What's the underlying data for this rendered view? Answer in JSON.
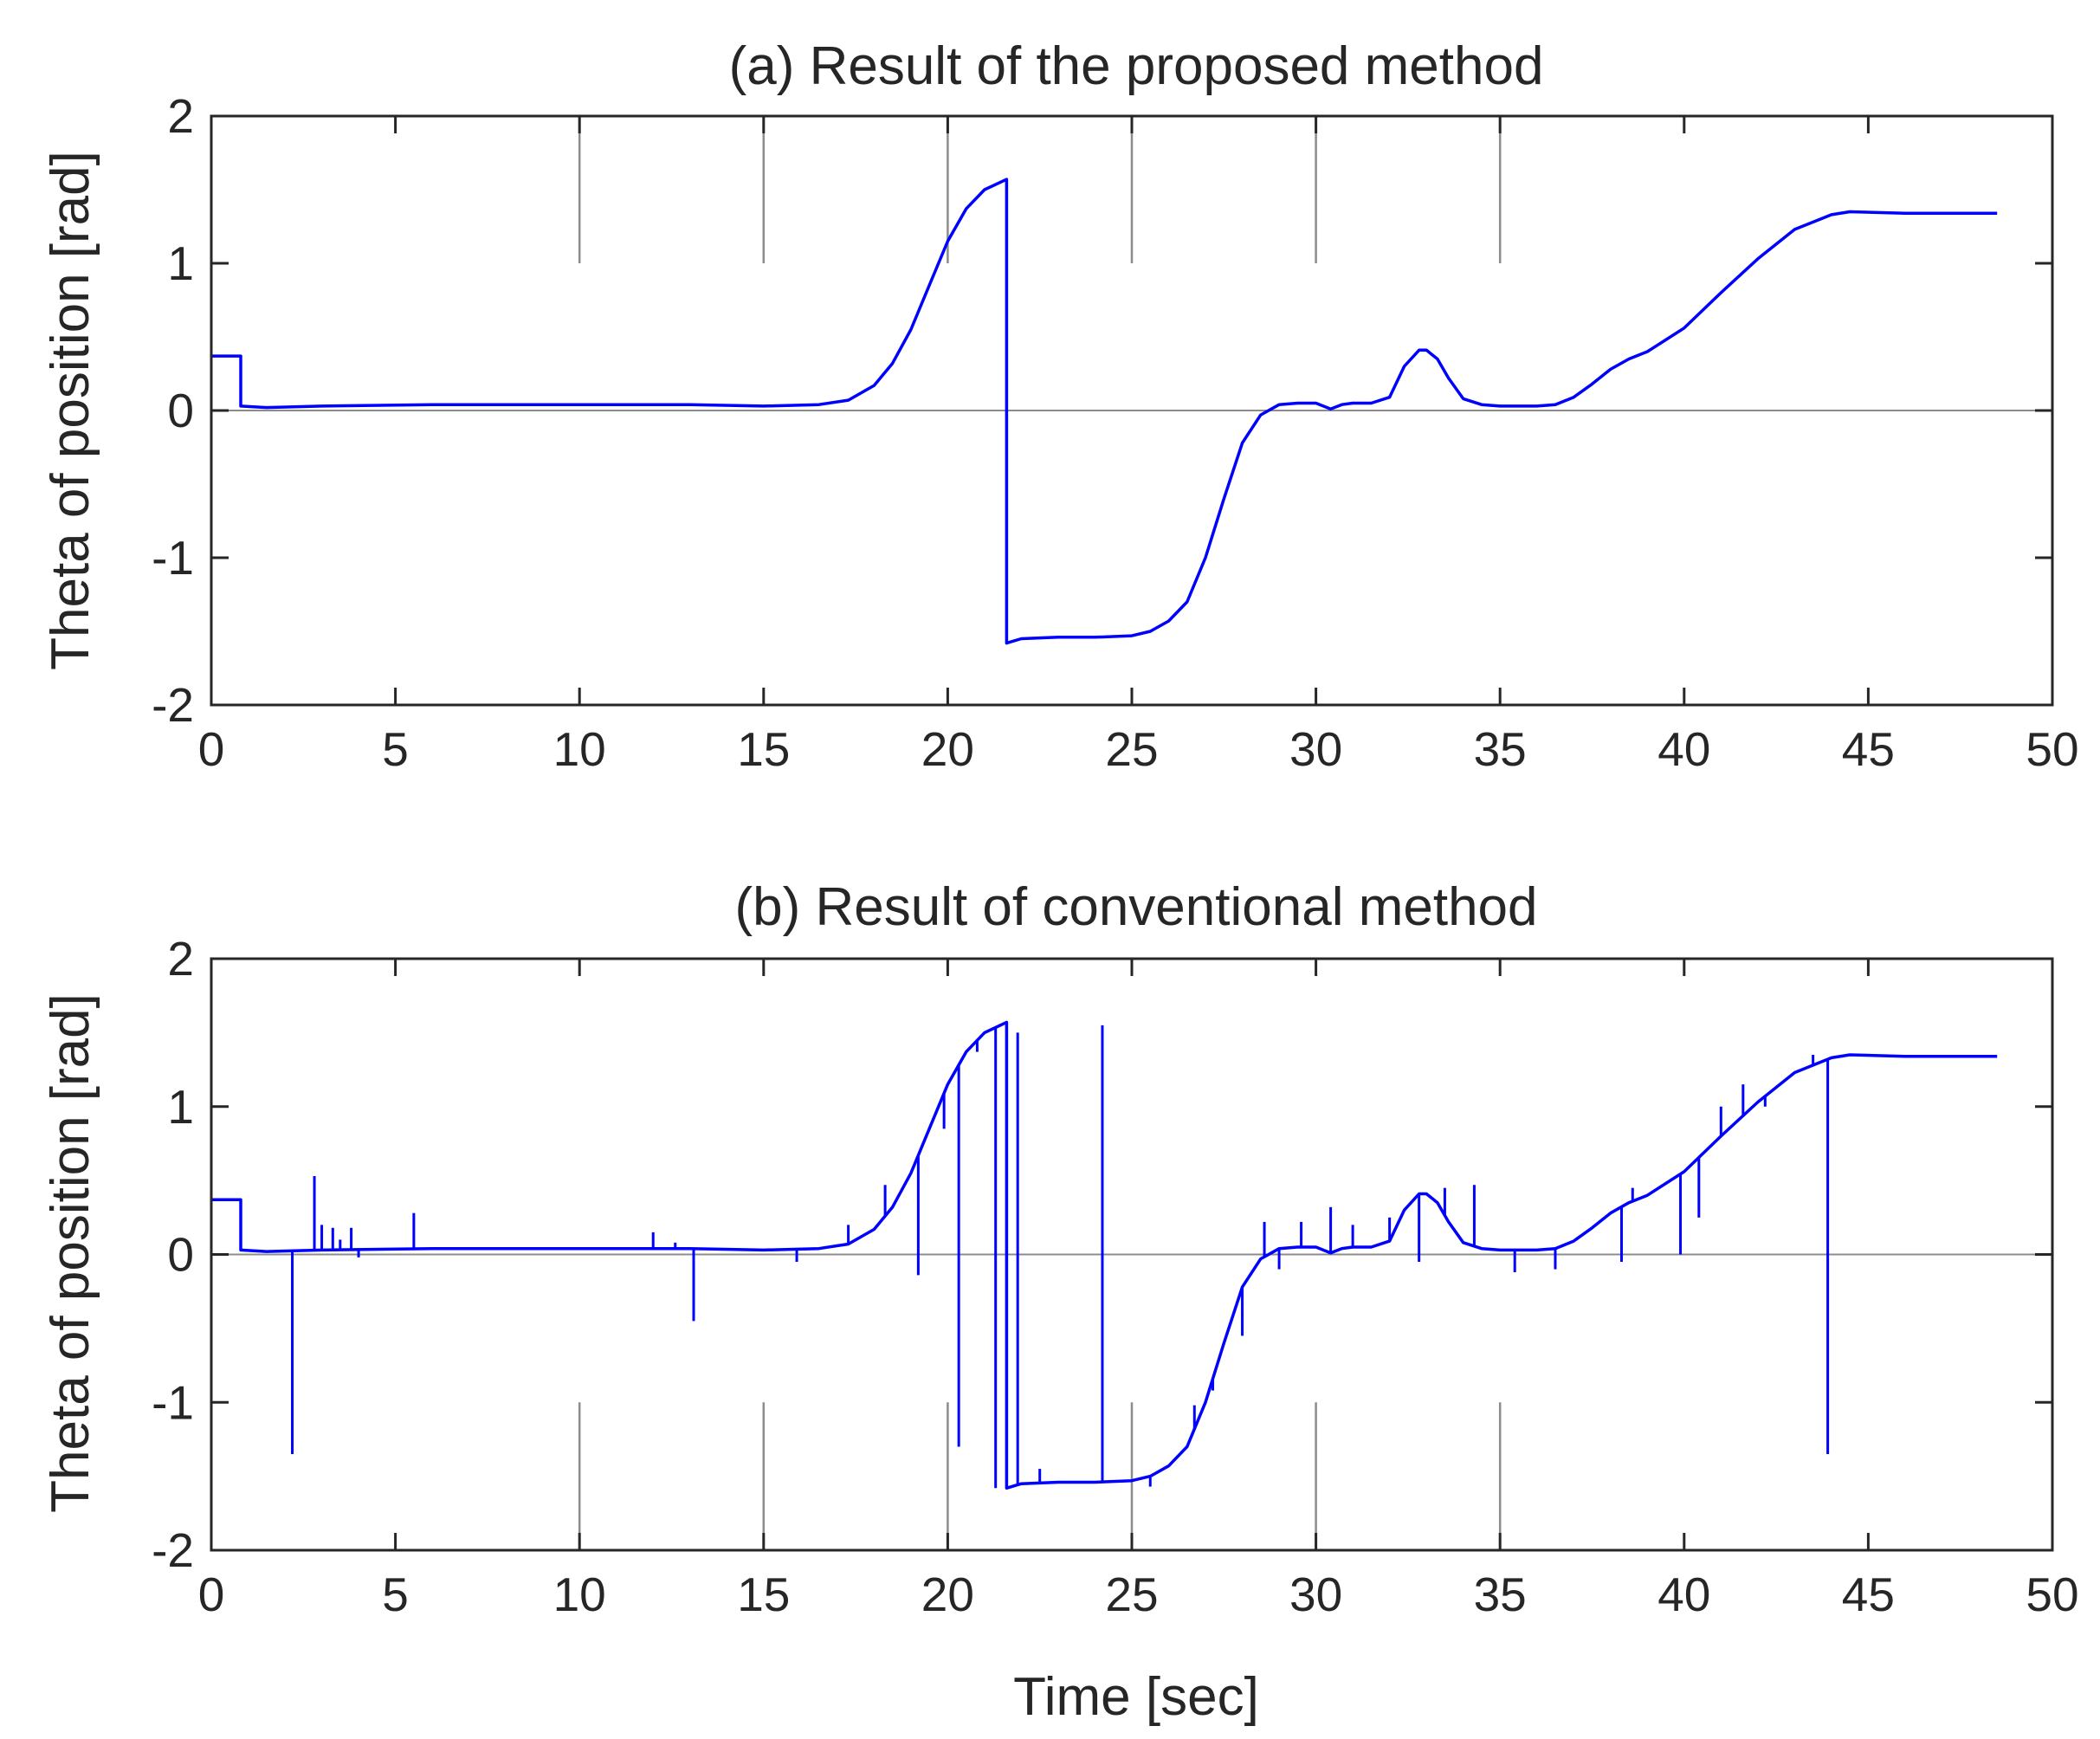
{
  "colors": {
    "series": "#0000ff",
    "axes": "#262626",
    "grid": "#8c8c8c"
  },
  "chart_data": [
    {
      "type": "line",
      "title": "(a) Result of the proposed method",
      "xlabel": "",
      "ylabel": "Theta of position [rad]",
      "xlim": [
        0,
        50
      ],
      "ylim": [
        -2,
        2
      ],
      "xticks": [
        "0",
        "5",
        "10",
        "15",
        "20",
        "25",
        "30",
        "35",
        "40",
        "45",
        "50"
      ],
      "yticks": [
        "2",
        "1",
        "0",
        "-1",
        "-2"
      ],
      "gridlines_x": [
        10,
        15,
        20,
        25,
        30,
        35
      ],
      "gridlines_span": "top",
      "series": [
        {
          "name": "theta",
          "x": [
            0,
            0.8,
            0.8,
            1.5,
            3,
            6,
            10,
            13,
            15,
            16.5,
            17.3,
            18,
            18.5,
            19,
            19.5,
            20,
            20.5,
            21,
            21.6,
            21.6,
            22,
            23,
            24,
            25,
            25.5,
            26,
            26.5,
            27,
            27.5,
            28,
            28.5,
            29,
            29.5,
            30,
            30.4,
            30.7,
            31,
            31.5,
            32,
            32.4,
            32.8,
            33,
            33.3,
            33.6,
            34,
            34.5,
            35,
            36,
            36.5,
            37,
            37.5,
            38,
            38.5,
            39,
            40,
            41,
            42,
            43,
            44,
            44.5,
            46,
            48.5
          ],
          "y": [
            0.37,
            0.37,
            0.03,
            0.02,
            0.03,
            0.04,
            0.04,
            0.04,
            0.03,
            0.04,
            0.07,
            0.17,
            0.32,
            0.55,
            0.85,
            1.15,
            1.37,
            1.5,
            1.57,
            -1.58,
            -1.55,
            -1.54,
            -1.54,
            -1.53,
            -1.5,
            -1.43,
            -1.3,
            -1.0,
            -0.6,
            -0.22,
            -0.03,
            0.04,
            0.05,
            0.05,
            0.01,
            0.04,
            0.05,
            0.05,
            0.09,
            0.3,
            0.41,
            0.41,
            0.35,
            0.22,
            0.08,
            0.04,
            0.03,
            0.03,
            0.04,
            0.09,
            0.18,
            0.28,
            0.35,
            0.4,
            0.56,
            0.8,
            1.03,
            1.23,
            1.33,
            1.35,
            1.34,
            1.34
          ]
        }
      ]
    },
    {
      "type": "line",
      "title": "(b) Result of conventional method",
      "xlabel": "Time [sec]",
      "ylabel": "Theta of position [rad]",
      "xlim": [
        0,
        50
      ],
      "ylim": [
        -2,
        2
      ],
      "xticks": [
        "0",
        "5",
        "10",
        "15",
        "20",
        "25",
        "30",
        "35",
        "40",
        "45",
        "50"
      ],
      "yticks": [
        "2",
        "1",
        "0",
        "-1",
        "-2"
      ],
      "gridlines_x": [
        10,
        15,
        20,
        25,
        30,
        35
      ],
      "gridlines_span": "bottom",
      "series": [
        {
          "name": "theta",
          "x": [
            0,
            0.8,
            0.8,
            1.5,
            3,
            6,
            10,
            13,
            15,
            16.5,
            17.3,
            18,
            18.5,
            19,
            19.5,
            20,
            20.5,
            21,
            21.6,
            21.6,
            22,
            23,
            24,
            25,
            25.5,
            26,
            26.5,
            27,
            27.5,
            28,
            28.5,
            29,
            29.5,
            30,
            30.4,
            30.7,
            31,
            31.5,
            32,
            32.4,
            32.8,
            33,
            33.3,
            33.6,
            34,
            34.5,
            35,
            36,
            36.5,
            37,
            37.5,
            38,
            38.5,
            39,
            40,
            41,
            42,
            43,
            44,
            44.5,
            46,
            48.5
          ],
          "y": [
            0.37,
            0.37,
            0.03,
            0.02,
            0.03,
            0.04,
            0.04,
            0.04,
            0.03,
            0.04,
            0.07,
            0.17,
            0.32,
            0.55,
            0.85,
            1.15,
            1.37,
            1.5,
            1.57,
            -1.58,
            -1.55,
            -1.54,
            -1.54,
            -1.53,
            -1.5,
            -1.43,
            -1.3,
            -1.0,
            -0.6,
            -0.22,
            -0.03,
            0.04,
            0.05,
            0.05,
            0.01,
            0.04,
            0.05,
            0.05,
            0.09,
            0.3,
            0.41,
            0.41,
            0.35,
            0.22,
            0.08,
            0.04,
            0.03,
            0.03,
            0.04,
            0.09,
            0.18,
            0.28,
            0.35,
            0.4,
            0.56,
            0.8,
            1.03,
            1.23,
            1.33,
            1.35,
            1.34,
            1.34
          ]
        }
      ],
      "spikes": [
        {
          "x": 2.2,
          "y": -1.35
        },
        {
          "x": 2.8,
          "y": 0.53
        },
        {
          "x": 3.0,
          "y": 0.2
        },
        {
          "x": 3.3,
          "y": 0.18
        },
        {
          "x": 3.5,
          "y": 0.1
        },
        {
          "x": 3.8,
          "y": 0.18
        },
        {
          "x": 4.0,
          "y": -0.02
        },
        {
          "x": 5.5,
          "y": 0.28
        },
        {
          "x": 12.0,
          "y": 0.15
        },
        {
          "x": 12.6,
          "y": 0.08
        },
        {
          "x": 13.1,
          "y": -0.45
        },
        {
          "x": 15.9,
          "y": -0.05
        },
        {
          "x": 17.3,
          "y": 0.2
        },
        {
          "x": 18.3,
          "y": 0.47
        },
        {
          "x": 19.2,
          "y": -0.14
        },
        {
          "x": 19.9,
          "y": 0.85
        },
        {
          "x": 20.3,
          "y": -1.3
        },
        {
          "x": 20.8,
          "y": 1.37
        },
        {
          "x": 21.3,
          "y": -1.58
        },
        {
          "x": 21.9,
          "y": 1.5
        },
        {
          "x": 22.5,
          "y": -1.45
        },
        {
          "x": 24.2,
          "y": 1.55
        },
        {
          "x": 25.5,
          "y": -1.57
        },
        {
          "x": 26.7,
          "y": -1.02
        },
        {
          "x": 27.2,
          "y": -0.92
        },
        {
          "x": 28.0,
          "y": -0.55
        },
        {
          "x": 28.6,
          "y": 0.22
        },
        {
          "x": 29.0,
          "y": -0.1
        },
        {
          "x": 29.6,
          "y": 0.22
        },
        {
          "x": 30.4,
          "y": 0.32
        },
        {
          "x": 31.0,
          "y": 0.2
        },
        {
          "x": 32.0,
          "y": 0.25
        },
        {
          "x": 32.8,
          "y": -0.05
        },
        {
          "x": 33.5,
          "y": 0.45
        },
        {
          "x": 34.3,
          "y": 0.47
        },
        {
          "x": 35.4,
          "y": -0.12
        },
        {
          "x": 36.5,
          "y": -0.1
        },
        {
          "x": 38.3,
          "y": -0.05
        },
        {
          "x": 38.6,
          "y": 0.45
        },
        {
          "x": 39.9,
          "y": 0.0
        },
        {
          "x": 40.4,
          "y": 0.25
        },
        {
          "x": 41.0,
          "y": 1.0
        },
        {
          "x": 41.6,
          "y": 1.15
        },
        {
          "x": 42.2,
          "y": 1.0
        },
        {
          "x": 43.5,
          "y": 1.35
        },
        {
          "x": 43.9,
          "y": -1.35
        }
      ]
    }
  ]
}
